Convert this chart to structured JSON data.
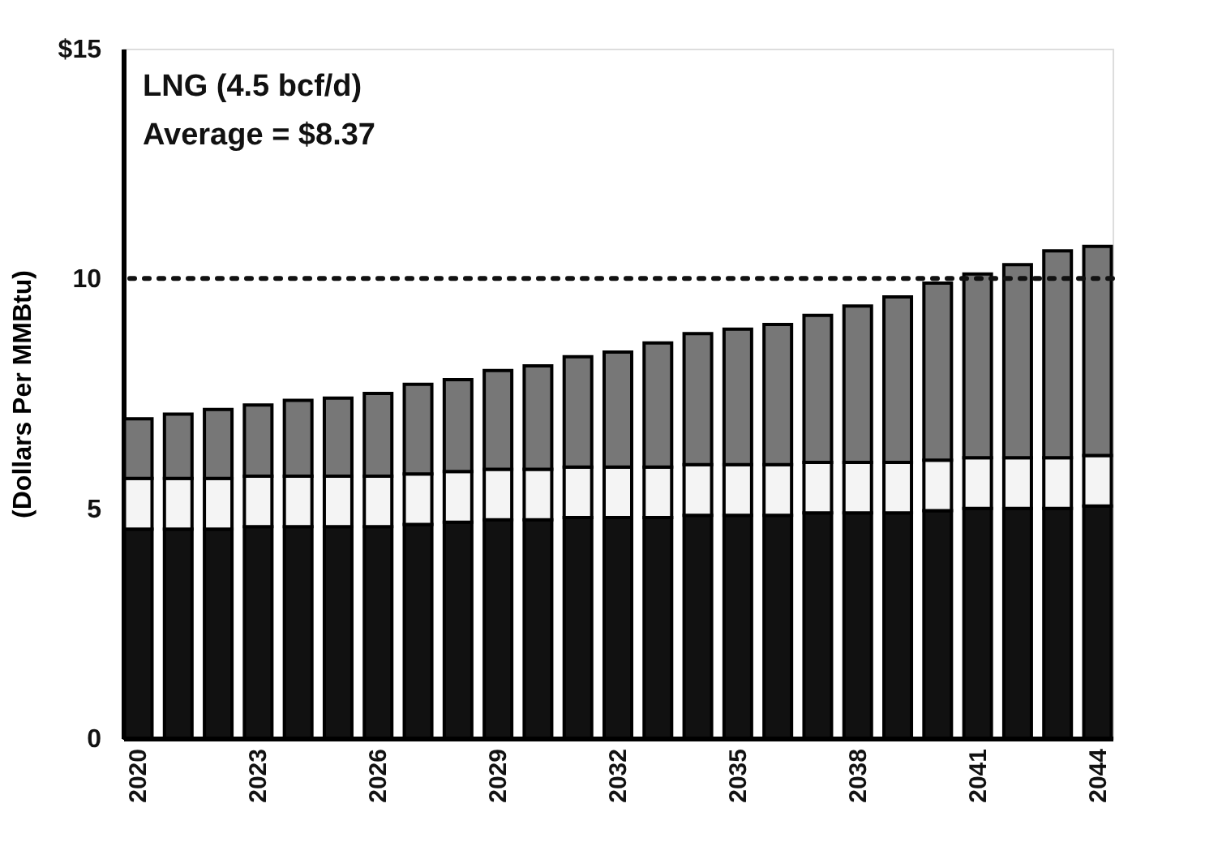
{
  "chart_data": {
    "type": "bar",
    "stacked": true,
    "ylabel": "(Dollars Per MMBtu)",
    "annotations": [
      "LNG (4.5 bcf/d)",
      "Average = $8.37"
    ],
    "categories": [
      "2020",
      null,
      null,
      "2023",
      null,
      null,
      "2026",
      null,
      null,
      "2029",
      null,
      null,
      "2032",
      null,
      null,
      "2035",
      null,
      null,
      "2038",
      null,
      null,
      "2041",
      null,
      null,
      "2044"
    ],
    "series": [
      {
        "color": "#111111",
        "values": [
          4.55,
          4.55,
          4.55,
          4.6,
          4.6,
          4.6,
          4.6,
          4.65,
          4.7,
          4.75,
          4.75,
          4.8,
          4.8,
          4.8,
          4.85,
          4.85,
          4.85,
          4.9,
          4.9,
          4.9,
          4.95,
          5.0,
          5.0,
          5.0,
          5.05
        ]
      },
      {
        "color": "#f4f4f4",
        "values": [
          1.1,
          1.1,
          1.1,
          1.1,
          1.1,
          1.1,
          1.1,
          1.1,
          1.1,
          1.1,
          1.1,
          1.1,
          1.1,
          1.1,
          1.1,
          1.1,
          1.1,
          1.1,
          1.1,
          1.1,
          1.1,
          1.1,
          1.1,
          1.1,
          1.1
        ]
      },
      {
        "color": "#777777",
        "values": [
          1.3,
          1.4,
          1.5,
          1.55,
          1.65,
          1.7,
          1.8,
          1.95,
          2.0,
          2.15,
          2.25,
          2.4,
          2.5,
          2.7,
          2.85,
          2.95,
          3.05,
          3.2,
          3.4,
          3.6,
          3.85,
          4.0,
          4.2,
          4.5,
          4.55
        ]
      }
    ],
    "ylim": [
      0,
      15
    ],
    "yticks": [
      0,
      5,
      10,
      {
        "value": 15,
        "label": "$15"
      }
    ],
    "ref_lines": [
      {
        "axis": "y",
        "value": 10,
        "line_style": "dotted",
        "color": "#111111"
      }
    ],
    "grid": false,
    "legend": false
  }
}
